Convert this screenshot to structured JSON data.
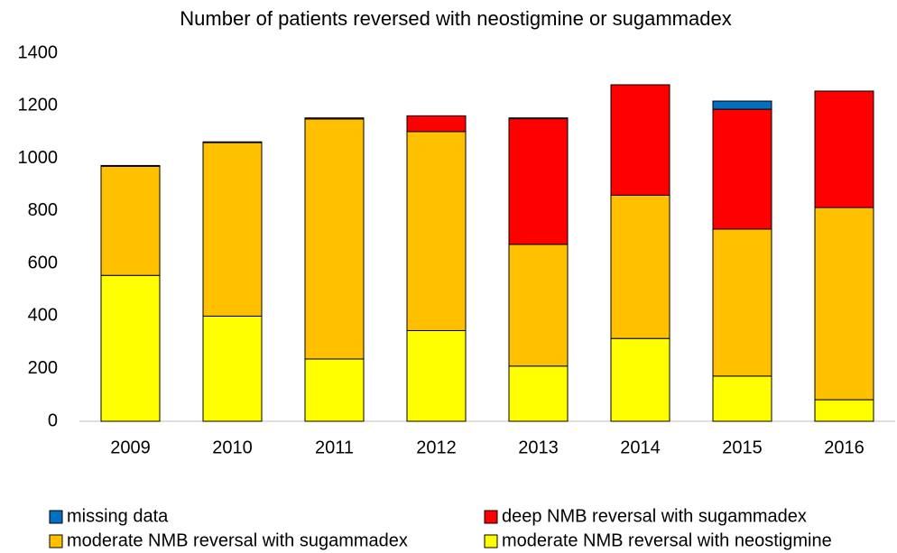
{
  "chart_data": {
    "type": "stacked_bar",
    "title": "Number of patients reversed with neostigmine or sugammadex",
    "categories": [
      "2009",
      "2010",
      "2011",
      "2012",
      "2013",
      "2014",
      "2015",
      "2016"
    ],
    "series": [
      {
        "name": "moderate NMB reversal with neostigmine",
        "color": "#ffff00",
        "values": [
          555,
          400,
          237,
          345,
          210,
          315,
          172,
          82
        ]
      },
      {
        "name": "moderate NMB reversal with sugammadex",
        "color": "#ffc000",
        "values": [
          415,
          660,
          913,
          757,
          463,
          545,
          559,
          731
        ]
      },
      {
        "name": "deep NMB reversal with sugammadex",
        "color": "#ff0000",
        "values": [
          3,
          3,
          4,
          60,
          478,
          420,
          456,
          443
        ]
      },
      {
        "name": "missing data",
        "color": "#0070c0",
        "values": [
          0,
          0,
          0,
          0,
          3,
          0,
          31,
          0
        ]
      }
    ],
    "ylim": [
      0,
      1400
    ],
    "yticks": [
      0,
      200,
      400,
      600,
      800,
      1000,
      1200,
      1400
    ],
    "grid": false
  }
}
